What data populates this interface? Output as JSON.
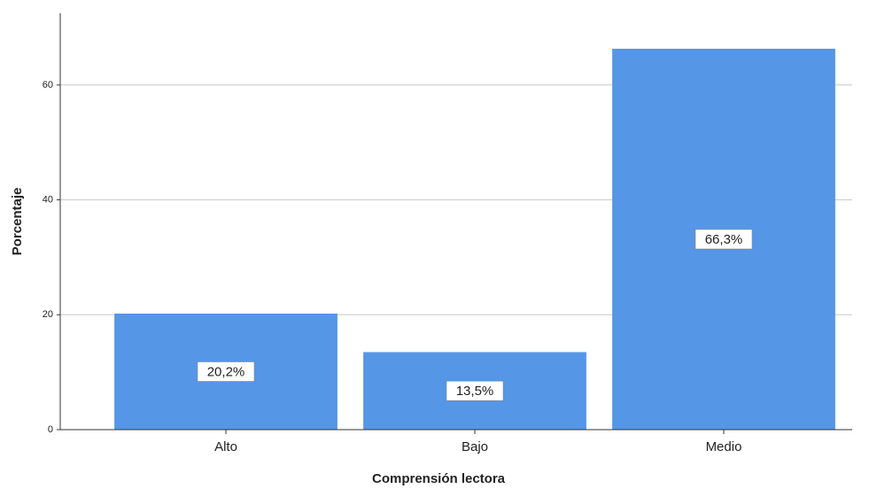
{
  "chart_data": {
    "type": "bar",
    "x_label": "Comprensión lectora",
    "y_label": "Porcentaje",
    "categories": [
      "Alto",
      "Bajo",
      "Medio"
    ],
    "values": [
      20.2,
      13.5,
      66.3
    ],
    "value_labels": [
      "20,2%",
      "13,5%",
      "66,3%"
    ],
    "color": "#5596e6",
    "ylim": [
      0,
      72.5
    ],
    "yticks": [
      0,
      20,
      40,
      60
    ],
    "grid": true
  }
}
